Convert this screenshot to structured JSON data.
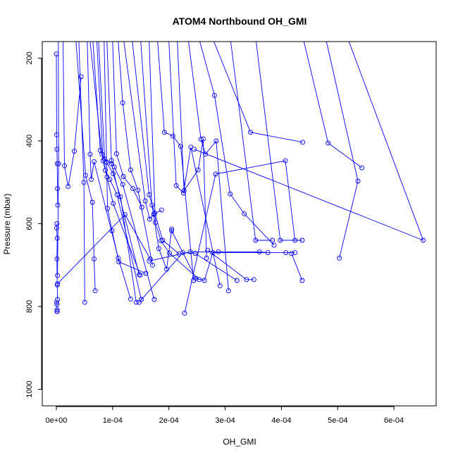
{
  "chart_data": {
    "type": "line",
    "title": "ATOM4 Northbound OH_GMI",
    "xlabel": "OH_GMI",
    "ylabel": "Pressure (mbar)",
    "xlim": [
      -2.5e-05,
      0.000675
    ],
    "ylim": [
      1040,
      160
    ],
    "y_reversed": true,
    "x_ticks": [
      0,
      0.0001,
      0.0002,
      0.0003,
      0.0004,
      0.0005,
      0.0006
    ],
    "x_tick_labels": [
      "0e+00",
      "1e-04",
      "2e-04",
      "3e-04",
      "4e-04",
      "5e-04",
      "6e-04"
    ],
    "y_ticks": [
      200,
      400,
      600,
      800,
      1000
    ],
    "y_tick_labels": [
      "200",
      "400",
      "600",
      "800",
      "1000"
    ],
    "grid": false,
    "series_color": "#0000ff",
    "marker": "open-circle",
    "profiles": [
      {
        "x": [
          0.0,
          5e-07,
          1e-06,
          1.5e-06,
          2e-06,
          2.5e-06
        ],
        "y": [
          190,
          385,
          420,
          455,
          515,
          555
        ]
      },
      {
        "x": [
          1e-06,
          5e-07,
          1.5e-06,
          1e-06,
          1.5e-06,
          2e-06
        ],
        "y": [
          600,
          610,
          635,
          685,
          748,
          783
        ]
      },
      {
        "x": [
          5e-07,
          1e-06,
          1.5e-06,
          1e-06,
          1.5e-06
        ],
        "y": [
          790,
          795,
          808,
          812,
          812
        ]
      },
      {
        "x": [
          3.5e-06,
          4e-06,
          2e-06
        ],
        "y": [
          160,
          455,
          725
        ]
      },
      {
        "x": [
          1.2e-05,
          1.45e-05,
          2.1e-05,
          3.2e-05,
          4.4e-05
        ],
        "y": [
          160,
          460,
          510,
          425,
          245
        ]
      },
      {
        "x": [
          3.5e-05,
          5.2e-05,
          6.4e-05,
          6.7e-05,
          6.9e-05
        ],
        "y": [
          160,
          483,
          548,
          685,
          762
        ]
      },
      {
        "x": [
          4e-05,
          4.9e-05,
          5.05e-05
        ],
        "y": [
          160,
          500,
          790
        ]
      },
      {
        "x": [
          5.5e-05,
          6e-05,
          6.2e-05,
          6.7e-05,
          0.00011,
          0.000132
        ],
        "y": [
          160,
          432,
          493,
          450,
          683,
          782
        ]
      },
      {
        "x": [
          6e-05,
          8.1e-05,
          8.9e-05,
          0.000101,
          0.000114,
          0.000142
        ],
        "y": [
          160,
          432,
          451,
          479,
          535,
          790
        ]
      },
      {
        "x": [
          6.5e-05,
          7.8e-05,
          8.5e-05,
          9.8e-05,
          0.000147
        ],
        "y": [
          160,
          423,
          443,
          455,
          723
        ]
      },
      {
        "x": [
          7.2e-05,
          8.3e-05,
          9e-05,
          0.000101,
          0.000149
        ],
        "y": [
          160,
          448,
          487,
          551,
          724
        ]
      },
      {
        "x": [
          7.5e-05,
          8.7e-05,
          9.5e-05,
          0.000108,
          0.000151
        ],
        "y": [
          160,
          471,
          493,
          530,
          783
        ]
      },
      {
        "x": [
          8.5e-05,
          9.1e-05,
          9.9e-05,
          0.000111,
          0.000159
        ],
        "y": [
          160,
          563,
          617,
          692,
          720
        ]
      },
      {
        "x": [
          9e-05,
          9.8e-05,
          0.000103,
          0.000118,
          0.000174
        ],
        "y": [
          160,
          447,
          463,
          505,
          783
        ]
      },
      {
        "x": [
          0.0001,
          0.000107,
          0.000119,
          0.000136,
          0.000152
        ],
        "y": [
          160,
          431,
          486,
          515,
          560
        ]
      },
      {
        "x": [
          0.00011,
          0.000118,
          0.000132,
          0.000145,
          0.000171
        ],
        "y": [
          160,
          308,
          470,
          519,
          700
        ]
      },
      {
        "x": [
          0.00012,
          0.000158,
          0.000166,
          0.000173,
          0.000187
        ],
        "y": [
          160,
          545,
          589,
          577,
          567
        ]
      },
      {
        "x": [
          0.000135,
          0.000165,
          0.000175,
          0.000189,
          0.000218
        ],
        "y": [
          160,
          530,
          575,
          640,
          673
        ]
      },
      {
        "x": [
          0.00015,
          0.00017,
          0.000182,
          0.000196,
          0.000205
        ],
        "y": [
          160,
          555,
          660,
          710,
          613
        ]
      },
      {
        "x": [
          0.000165,
          0.000176,
          0.000186,
          0.000201,
          0.000254
        ],
        "y": [
          160,
          597,
          641,
          671,
          735
        ]
      },
      {
        "x": [
          0.00018,
          0.000192,
          0.000207,
          0.000221,
          0.000244
        ],
        "y": [
          160,
          379,
          388,
          413,
          737
        ]
      },
      {
        "x": [
          0.0002,
          0.000213,
          0.000226,
          0.000239,
          0.000291
        ],
        "y": [
          160,
          508,
          526,
          415,
          750
        ]
      },
      {
        "x": [
          0.000215,
          0.000227,
          0.000252,
          0.000261,
          0.000267
        ],
        "y": [
          160,
          520,
          470,
          395,
          683
        ]
      },
      {
        "x": [
          0.000235,
          0.000257,
          0.000265,
          0.000284,
          0.000306
        ],
        "y": [
          160,
          396,
          432,
          400,
          762
        ]
      },
      {
        "x": [
          0.000255,
          0.000281,
          0.000309,
          0.000334,
          0.000387
        ],
        "y": [
          160,
          290,
          528,
          576,
          652
        ]
      },
      {
        "x": [
          0.00028,
          0.000345,
          0.000438
        ],
        "y": [
          160,
          379,
          403
        ]
      },
      {
        "x": [
          0.00031,
          0.000354,
          0.000384
        ],
        "y": [
          160,
          640,
          640
        ]
      },
      {
        "x": [
          0.000355,
          0.000398,
          0.000437
        ],
        "y": [
          160,
          640,
          640
        ]
      },
      {
        "x": [
          0.00044,
          0.000483,
          0.000543
        ],
        "y": [
          160,
          405,
          465
        ]
      },
      {
        "x": [
          0.00048,
          0.000536,
          0.000503
        ],
        "y": [
          160,
          497,
          683
        ]
      },
      {
        "x": [
          0.00052,
          0.000652,
          0.000245
        ],
        "y": [
          160,
          640,
          420
        ]
      },
      {
        "x": [
          2e-06,
          0.000122,
          0.000167
        ],
        "y": [
          745,
          578,
          685
        ]
      },
      {
        "x": [
          0.000147,
          0.000225,
          0.000247,
          0.000321
        ],
        "y": [
          790,
          670,
          672,
          737
        ]
      },
      {
        "x": [
          0.000228,
          0.000283,
          0.000407,
          0.000424
        ],
        "y": [
          816,
          480,
          448,
          640
        ]
      },
      {
        "x": [
          0.000205,
          0.000248,
          0.000263,
          0.000278,
          0.000408,
          0.000424
        ],
        "y": [
          617,
          732,
          737,
          670,
          670,
          670
        ]
      },
      {
        "x": [
          0.000269,
          0.000338,
          0.000351
        ],
        "y": [
          664,
          735,
          735
        ]
      },
      {
        "x": [
          0.000165,
          0.000238,
          0.000288,
          0.000361,
          0.000376
        ],
        "y": [
          690,
          668,
          668,
          668,
          670
        ]
      },
      {
        "x": [
          0.000418,
          0.000437
        ],
        "y": [
          672,
          737
        ]
      }
    ]
  }
}
